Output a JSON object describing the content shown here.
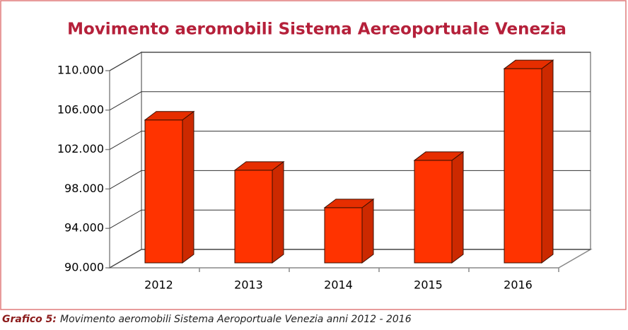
{
  "chart_data": {
    "type": "bar3d",
    "title": "Movimento aeromobili Sistema Aereoportuale Venezia",
    "categories": [
      "2012",
      "2013",
      "2014",
      "2015",
      "2016"
    ],
    "values": [
      104500,
      99400,
      95600,
      100400,
      109700
    ],
    "color": "#ff3300",
    "ylim": [
      90000,
      110000
    ],
    "yticks": [
      {
        "value": 90000,
        "label": "90.000"
      },
      {
        "value": 94000,
        "label": "94.000"
      },
      {
        "value": 98000,
        "label": "98.000"
      },
      {
        "value": 102000,
        "label": "102.000"
      },
      {
        "value": 106000,
        "label": "106.000"
      },
      {
        "value": 110000,
        "label": "110.000"
      }
    ],
    "grid": true
  },
  "caption": {
    "label": "Grafico 5:",
    "text": "Movimento aeromobili Sistema Aeroportuale Venezia anni 2012 - 2016"
  }
}
